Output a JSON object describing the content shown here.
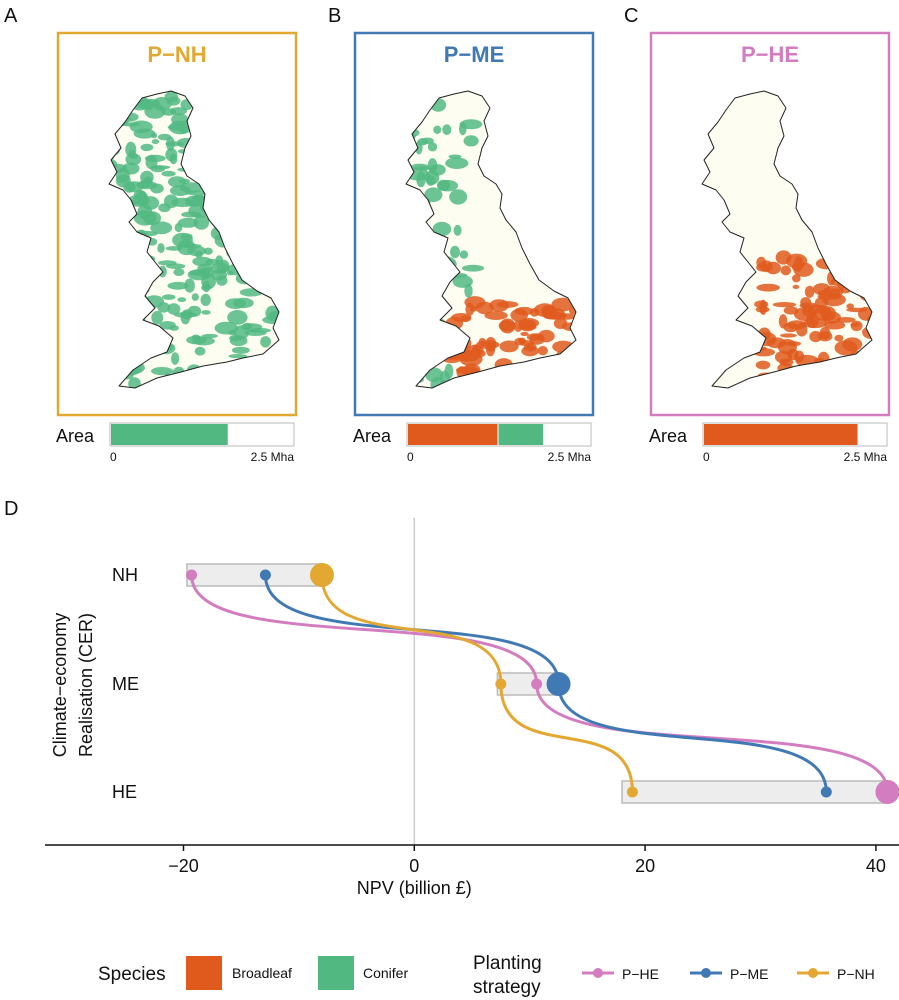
{
  "panel_letters": [
    "A",
    "B",
    "C",
    "D"
  ],
  "area_bar": {
    "label": "Area",
    "tick_min": "0",
    "tick_max": "2.5 Mha",
    "max_mha": 2.5
  },
  "colors": {
    "broadleaf": "#E05A1E",
    "conifer": "#52B882",
    "P-NH": "#E2A831",
    "P-ME": "#4179B4",
    "P-HE": "#D37CC0",
    "map_land": "#FDFDF1",
    "band_fill": "#EDEDED",
    "band_stroke": "#BBBBBB",
    "zero_line": "#CCCCCC"
  },
  "maps": [
    {
      "title": "P−NH",
      "color": "#E2A831",
      "area": {
        "broadleaf": 0.0,
        "conifer": 1.6
      },
      "dominant": "conifer"
    },
    {
      "title": "P−ME",
      "color": "#4179B4",
      "area": {
        "broadleaf": 1.23,
        "conifer": 0.62
      },
      "dominant": "mixed"
    },
    {
      "title": "P−HE",
      "color": "#D37CC0",
      "area": {
        "broadleaf": 2.1,
        "conifer": 0.0
      },
      "dominant": "broadleaf"
    }
  ],
  "chart_data": {
    "type": "scatter",
    "xlabel": "NPV (billion £)",
    "ylabel_lines": [
      "Climate−economy",
      "Realisation (CER)"
    ],
    "categories": [
      "NH",
      "ME",
      "HE"
    ],
    "xlim": [
      -32,
      42
    ],
    "xticks": [
      -20,
      0,
      20,
      40
    ],
    "xtick_labels": [
      "−20",
      "0",
      "20",
      "40"
    ],
    "bands": [
      {
        "category": "NH",
        "xmin": -19.7,
        "xmax": -8.0
      },
      {
        "category": "ME",
        "xmin": 7.2,
        "xmax": 12.5
      },
      {
        "category": "HE",
        "xmin": 18.0,
        "xmax": 41.0
      }
    ],
    "series": [
      {
        "name": "P−HE",
        "matched": "HE",
        "values": {
          "NH": -19.3,
          "ME": 10.6,
          "HE": 41.0
        }
      },
      {
        "name": "P−ME",
        "matched": "ME",
        "values": {
          "NH": -12.9,
          "ME": 12.5,
          "HE": 35.7
        }
      },
      {
        "name": "P−NH",
        "matched": "NH",
        "values": {
          "NH": -8.0,
          "ME": 7.5,
          "HE": 18.9
        }
      }
    ]
  },
  "legend": {
    "species_title": "Species",
    "species": [
      {
        "label": "Broadleaf",
        "key": "broadleaf"
      },
      {
        "label": "Conifer",
        "key": "conifer"
      }
    ],
    "strategy_title_lines": [
      "Planting",
      "strategy"
    ],
    "strategies": [
      "P−HE",
      "P−ME",
      "P−NH"
    ]
  }
}
